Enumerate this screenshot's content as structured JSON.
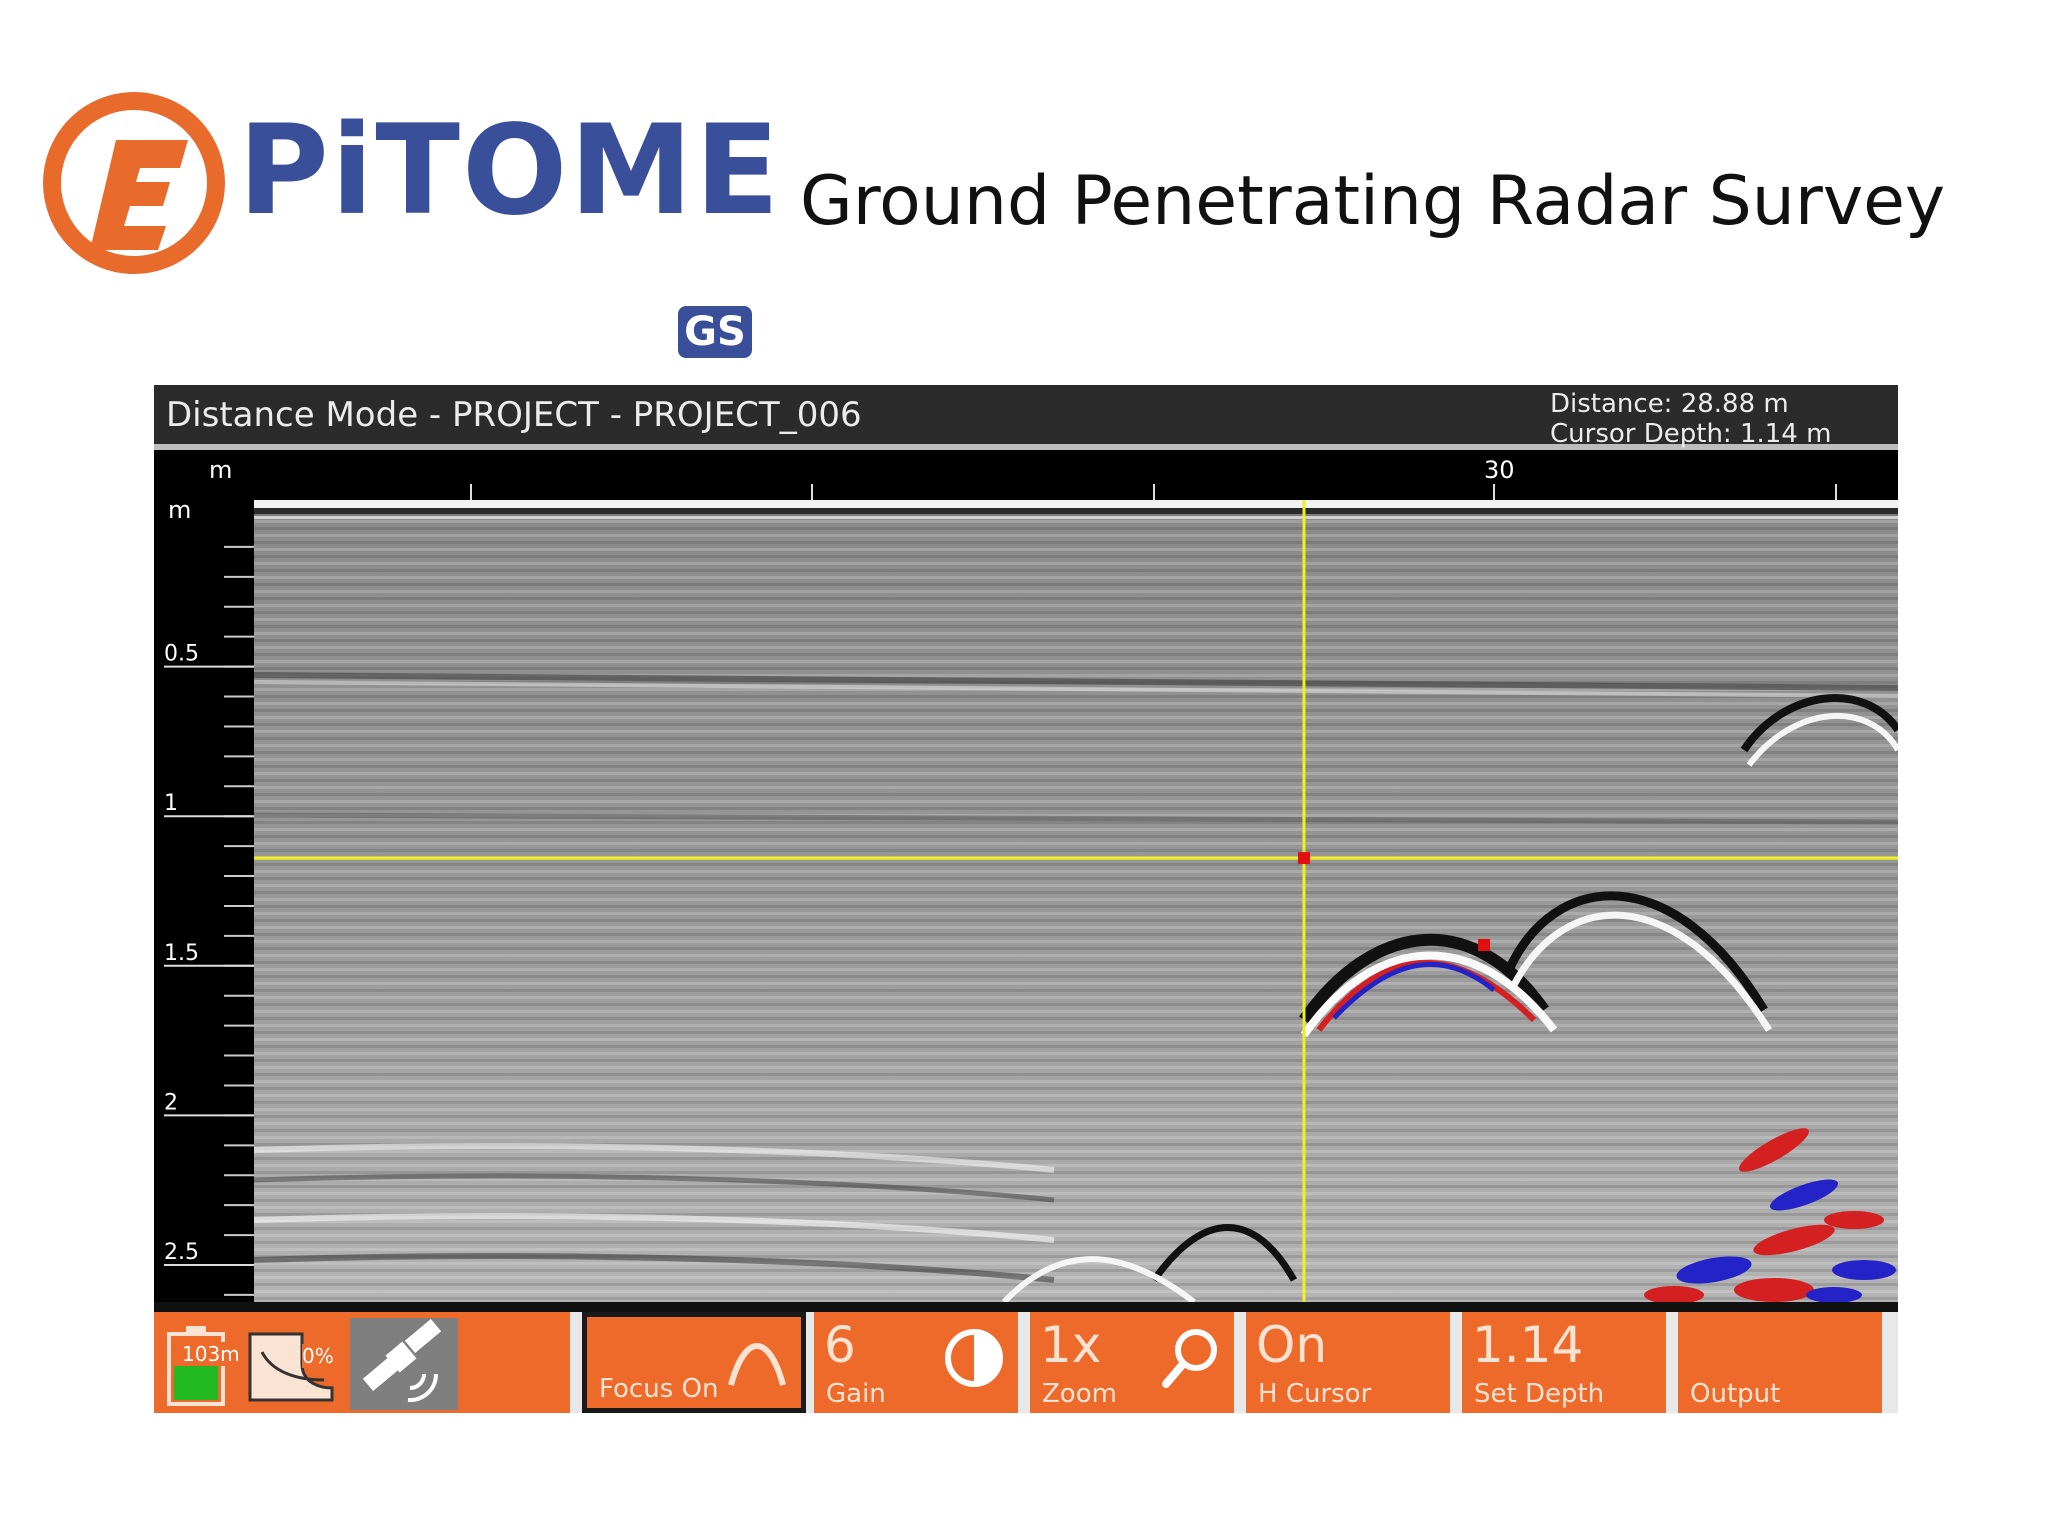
{
  "slide": {
    "logo_text": "PiTOME",
    "logo_sub": "GS",
    "title": "Ground Penetrating Radar Survey"
  },
  "header": {
    "mode_title": "Distance Mode - PROJECT - PROJECT_006",
    "distance": "Distance: 28.88 m",
    "cursor_depth": "Cursor Depth: 1.14 m"
  },
  "ruler": {
    "unit": "m",
    "label_30": "30"
  },
  "depth_axis": {
    "unit": "m",
    "ticks": [
      {
        "label": "0.5",
        "value": 0.5
      },
      {
        "label": "1",
        "value": 1.0
      },
      {
        "label": "1.5",
        "value": 1.5
      },
      {
        "label": "2",
        "value": 2.0
      },
      {
        "label": "2.5",
        "value": 2.5
      }
    ]
  },
  "cursor": {
    "depth_m": 1.14,
    "color": "#f0f01e"
  },
  "status": {
    "battery_label": "103m",
    "storage_label": "0%",
    "battery_color": "#22b822"
  },
  "toolbar": {
    "focus_label": "Focus On",
    "gain_value": "6",
    "gain_label": "Gain",
    "zoom_value": "1x",
    "zoom_label": "Zoom",
    "hcursor_value": "On",
    "hcursor_label": "H Cursor",
    "depth_value": "1.14",
    "depth_label": "Set Depth",
    "output_label": "Output",
    "accent_color": "#ee6a2a"
  }
}
